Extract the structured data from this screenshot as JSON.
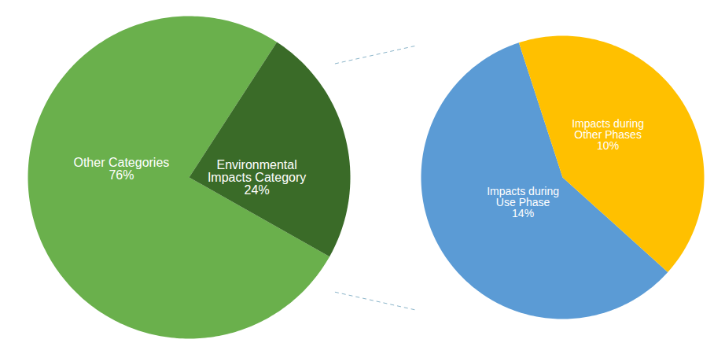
{
  "chart_data": [
    {
      "type": "pie",
      "categories": [
        "Other Categories\n76%",
        "Environmental\nImpacts Category\n24%"
      ],
      "values": [
        76,
        24
      ],
      "colors": [
        "#6ab04c",
        "#3a6b28"
      ]
    },
    {
      "type": "pie",
      "categories": [
        "Impacts during\nUse Phase\n14%",
        "Impacts during\nOther Phases\n10%"
      ],
      "values": [
        14,
        10
      ],
      "colors": [
        "#5b9bd5",
        "#ffc000"
      ]
    }
  ]
}
